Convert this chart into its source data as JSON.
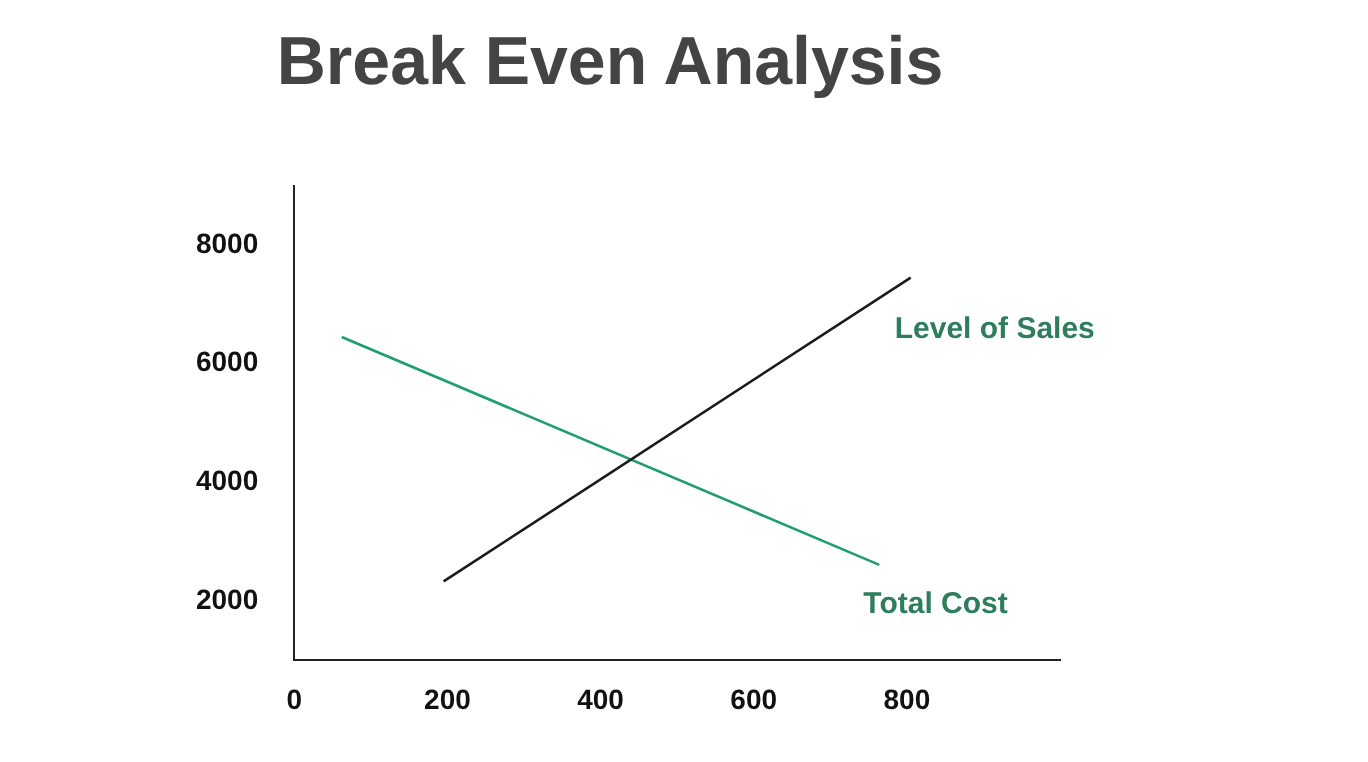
{
  "chart_data": {
    "type": "line",
    "title": "Break Even Analysis",
    "xlim": [
      0,
      1000
    ],
    "xticks": [
      0,
      200,
      400,
      600,
      800
    ],
    "ylim": [
      1000,
      9000
    ],
    "yticks": [
      2000,
      4000,
      6000,
      8000
    ],
    "grid": false,
    "legend": false,
    "marker": "none",
    "line_style": "solid",
    "series": [
      {
        "name": "Level of Sales",
        "color": "#1a1a1a",
        "x": [
          195,
          805
        ],
        "values": [
          2330,
          7450
        ]
      },
      {
        "name": "Total Cost",
        "color": "#1e9e6a",
        "x": [
          62,
          764
        ],
        "values": [
          6450,
          2610
        ]
      }
    ]
  }
}
